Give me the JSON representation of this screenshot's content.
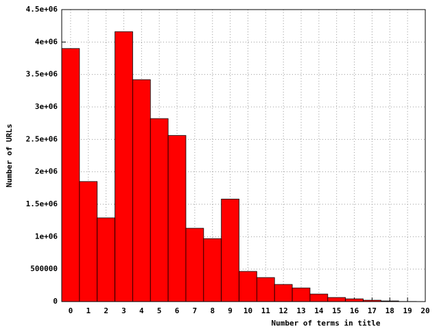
{
  "chart_data": {
    "type": "histogram",
    "xlabel": "Number of terms in title",
    "ylabel": "Number of URLs",
    "bins": [
      -0.5,
      0.5,
      1.5,
      2.5,
      3.5,
      4.5,
      5.5,
      6.5,
      7.5,
      8.5,
      9.5,
      10.5,
      11.5,
      12.5,
      13.5,
      14.5,
      15.5,
      16.5,
      17.5,
      18.5,
      19.5
    ],
    "values": [
      3900000,
      1850000,
      1290000,
      4160000,
      3420000,
      2820000,
      2560000,
      1130000,
      970000,
      1580000,
      465000,
      370000,
      264000,
      210000,
      116000,
      63000,
      42000,
      21000,
      10000,
      2000
    ],
    "color": "#ff0000",
    "xlim": [
      -0.5,
      20
    ],
    "xticks": [
      0,
      1,
      2,
      3,
      4,
      5,
      6,
      7,
      8,
      9,
      10,
      11,
      12,
      13,
      14,
      15,
      16,
      17,
      18,
      19,
      20
    ],
    "ylim": [
      0,
      4500000
    ],
    "yticks": [
      0,
      500000,
      {
        "value": 1000000,
        "label": "1e+06"
      },
      {
        "value": 1500000,
        "label": "1.5e+06"
      },
      {
        "value": 2000000,
        "label": "2e+06"
      },
      {
        "value": 2500000,
        "label": "2.5e+06"
      },
      {
        "value": 3000000,
        "label": "3e+06"
      },
      {
        "value": 3500000,
        "label": "3.5e+06"
      },
      {
        "value": 4000000,
        "label": "4e+06"
      },
      {
        "value": 4500000,
        "label": "4.5e+06"
      }
    ],
    "grid": true
  }
}
